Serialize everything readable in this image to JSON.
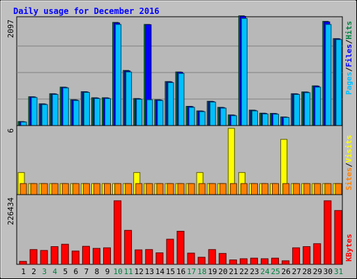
{
  "chart_data": {
    "type": "bar",
    "title": "Daily usage for December 2016",
    "days": [
      1,
      2,
      3,
      4,
      5,
      6,
      7,
      8,
      9,
      10,
      11,
      12,
      13,
      14,
      15,
      16,
      17,
      18,
      19,
      20,
      21,
      22,
      23,
      24,
      25,
      26,
      27,
      28,
      29,
      30,
      31
    ],
    "weekend_days": [
      3,
      4,
      10,
      11,
      17,
      18,
      24,
      25,
      31
    ],
    "panels": [
      {
        "id": "top",
        "ymax_label": "2097",
        "ymax": 2097,
        "legend": [
          "Pages",
          "Files",
          "Hits"
        ],
        "series": [
          {
            "name": "Hits",
            "color": "#008040",
            "values": [
              80,
              570,
              430,
              630,
              760,
              510,
              670,
              550,
              550,
              2040,
              1090,
              535,
              2000,
              510,
              870,
              1060,
              380,
              290,
              480,
              360,
              210,
              2170,
              305,
              245,
              240,
              170,
              630,
              665,
              785,
              2060,
              1720
            ]
          },
          {
            "name": "Files",
            "color": "#0000ff",
            "values": [
              75,
              565,
              425,
              625,
              755,
              505,
              665,
              545,
              545,
              2030,
              1080,
              530,
              1995,
              505,
              865,
              1055,
              375,
              285,
              475,
              355,
              205,
              2160,
              300,
              240,
              235,
              165,
              625,
              660,
              780,
              2050,
              1715
            ]
          },
          {
            "name": "Pages",
            "color": "#00c0ff",
            "values": [
              70,
              555,
              415,
              615,
              745,
              495,
              655,
              535,
              535,
              2000,
              1060,
              520,
              510,
              495,
              850,
              1030,
              360,
              275,
              465,
              345,
              195,
              2120,
              290,
              230,
              225,
              160,
              615,
              650,
              760,
              2000,
              1700
            ]
          }
        ]
      },
      {
        "id": "mid",
        "ymax_label": "6",
        "ymax": 6,
        "legend": [
          "Sites",
          "Visits"
        ],
        "series": [
          {
            "name": "Visits",
            "color": "#ffff00",
            "values": [
              2,
              1,
              1,
              1,
              1,
              1,
              1,
              1,
              1,
              1,
              1,
              2,
              1,
              1,
              1,
              1,
              1,
              2,
              1,
              1,
              6,
              2,
              1,
              1,
              1,
              5,
              1,
              1,
              1,
              1,
              1
            ]
          },
          {
            "name": "Sites",
            "color": "#ff8000",
            "values": [
              1,
              1,
              1,
              1,
              1,
              1,
              1,
              1,
              1,
              1,
              1,
              1,
              1,
              1,
              1,
              1,
              1,
              1,
              1,
              1,
              1,
              1,
              1,
              1,
              1,
              1,
              1,
              1,
              1,
              1,
              1
            ]
          }
        ]
      },
      {
        "id": "bot",
        "ymax_label": "226434",
        "ymax": 226434,
        "legend": [
          "KBytes"
        ],
        "series": [
          {
            "name": "KBytes",
            "color": "#ff0000",
            "values": [
              10000,
              50000,
              47000,
              60000,
              68000,
              45000,
              61000,
              54000,
              56000,
              215000,
              115000,
              49000,
              50000,
              39000,
              85000,
              112000,
              38000,
              24000,
              50000,
              37000,
              15000,
              19000,
              21000,
              19000,
              21000,
              12000,
              56000,
              60000,
              70000,
              215000,
              182000
            ]
          }
        ]
      }
    ]
  }
}
